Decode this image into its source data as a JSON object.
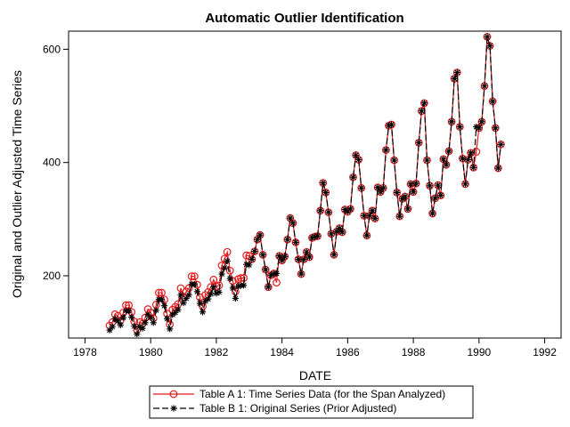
{
  "chart_data": {
    "type": "line",
    "title": "Automatic Outlier Identification",
    "xlabel": "DATE",
    "ylabel": "Original and Outlier Adjusted Time Series",
    "xlim": [
      1977.5,
      1992.5
    ],
    "ylim": [
      90,
      632
    ],
    "x_ticks": [
      1978,
      1980,
      1982,
      1984,
      1986,
      1988,
      1990,
      1992
    ],
    "y_ticks": [
      200,
      400,
      600
    ],
    "grid": false,
    "legend_position": "bottom",
    "x_start": 1978.75,
    "x_step": 0.0833333,
    "series": [
      {
        "name": "Table A 1:  Time Series Data (for the Span Analyzed)",
        "color": "#e31a1c",
        "marker": "circle",
        "line": "solid",
        "values": [
          112,
          118,
          132,
          129,
          121,
          135,
          148,
          148,
          136,
          119,
          104,
          118,
          115,
          126,
          141,
          135,
          125,
          149,
          170,
          170,
          158,
          133,
          114,
          140,
          145,
          150,
          178,
          163,
          172,
          178,
          199,
          199,
          184,
          162,
          146,
          166,
          171,
          180,
          193,
          181,
          183,
          218,
          230,
          242,
          209,
          191,
          172,
          194,
          196,
          196,
          236,
          235,
          229,
          243,
          264,
          272,
          237,
          211,
          180,
          201,
          204,
          188,
          235,
          227,
          234,
          264,
          302,
          293,
          259,
          229,
          203,
          229,
          242,
          233,
          267,
          269,
          270,
          315,
          364,
          347,
          312,
          274,
          237,
          278,
          284,
          277,
          317,
          313,
          318,
          374,
          413,
          405,
          355,
          306,
          271,
          306,
          315,
          301,
          356,
          348,
          355,
          422,
          465,
          467,
          404,
          347,
          305,
          336,
          340,
          318,
          362,
          348,
          363,
          435,
          491,
          505,
          404,
          359,
          310,
          337,
          360,
          342,
          406,
          396,
          420,
          472,
          548,
          559,
          463,
          407,
          362,
          405,
          417,
          391,
          419,
          461,
          472,
          535,
          622,
          606,
          508,
          461,
          390,
          432
        ]
      },
      {
        "name": "Table B 1:  Original Series (Prior Adjusted)",
        "color": "#000000",
        "marker": "star",
        "line": "dash",
        "values": [
          104,
          110,
          124,
          120,
          113,
          126,
          138,
          138,
          127,
          111,
          97,
          110,
          107,
          117,
          131,
          126,
          117,
          139,
          158,
          158,
          147,
          124,
          106,
          131,
          135,
          140,
          166,
          152,
          160,
          166,
          185,
          185,
          172,
          151,
          136,
          155,
          159,
          168,
          180,
          169,
          171,
          203,
          214,
          226,
          195,
          178,
          160,
          181,
          183,
          183,
          220,
          219,
          229,
          243,
          264,
          272,
          237,
          211,
          180,
          201,
          204,
          204,
          235,
          227,
          234,
          264,
          302,
          293,
          259,
          229,
          203,
          229,
          242,
          233,
          267,
          269,
          270,
          315,
          364,
          347,
          312,
          274,
          237,
          278,
          284,
          277,
          317,
          313,
          318,
          374,
          413,
          405,
          355,
          306,
          271,
          306,
          315,
          301,
          356,
          348,
          355,
          422,
          465,
          467,
          404,
          347,
          305,
          336,
          340,
          318,
          362,
          348,
          363,
          435,
          491,
          505,
          404,
          359,
          310,
          337,
          360,
          342,
          406,
          396,
          420,
          472,
          548,
          559,
          463,
          407,
          362,
          405,
          417,
          391,
          463,
          461,
          472,
          535,
          622,
          606,
          508,
          461,
          390,
          432
        ]
      }
    ]
  }
}
